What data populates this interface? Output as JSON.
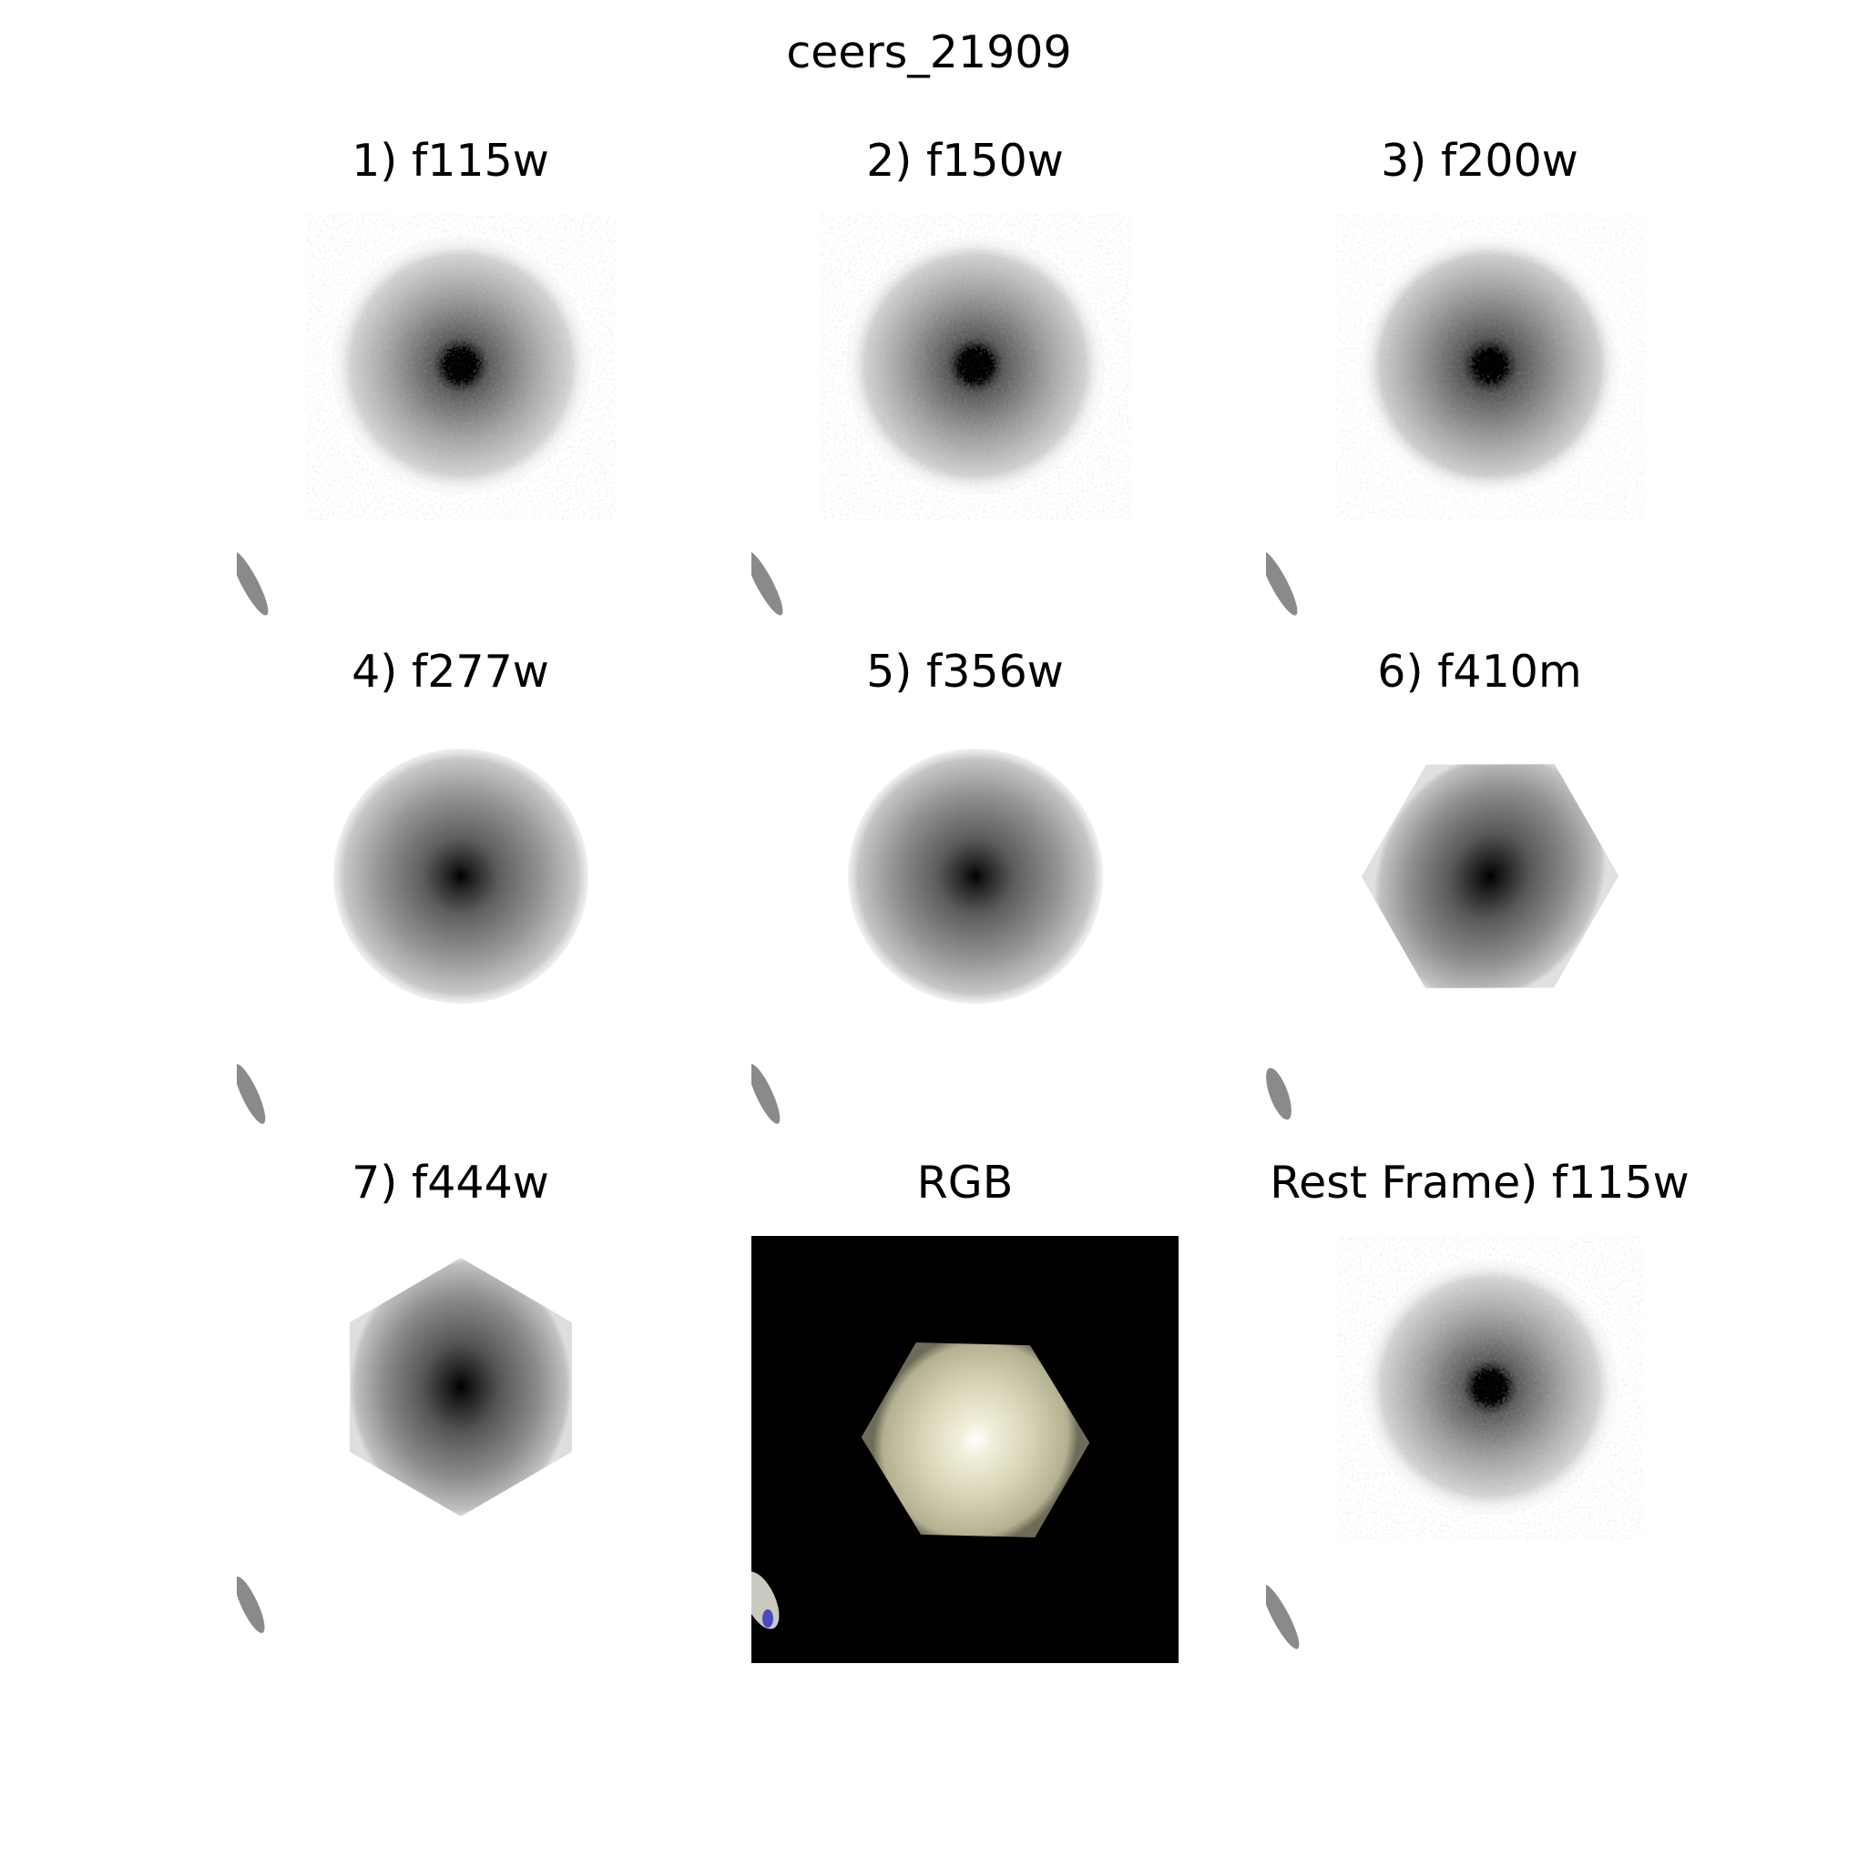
{
  "figure": {
    "title": "ceers_21909"
  },
  "panels": [
    {
      "title": "1) f115w",
      "kind": "band",
      "grain": "noisy"
    },
    {
      "title": "2) f150w",
      "kind": "band",
      "grain": "noisy"
    },
    {
      "title": "3) f200w",
      "kind": "band",
      "grain": "noisy"
    },
    {
      "title": "4) f277w",
      "kind": "band",
      "grain": "smooth"
    },
    {
      "title": "5) f356w",
      "kind": "band",
      "grain": "smooth"
    },
    {
      "title": "6) f410m",
      "kind": "band",
      "grain": "hexagonal"
    },
    {
      "title": "7) f444w",
      "kind": "band",
      "grain": "hexagonal"
    },
    {
      "title": "RGB",
      "kind": "rgb",
      "background_color": "#000000",
      "source_core_color": "#ffffff",
      "source_halo_color": "#d9d6b8"
    },
    {
      "title": "Rest Frame) f115w",
      "kind": "band",
      "grain": "noisy"
    }
  ]
}
